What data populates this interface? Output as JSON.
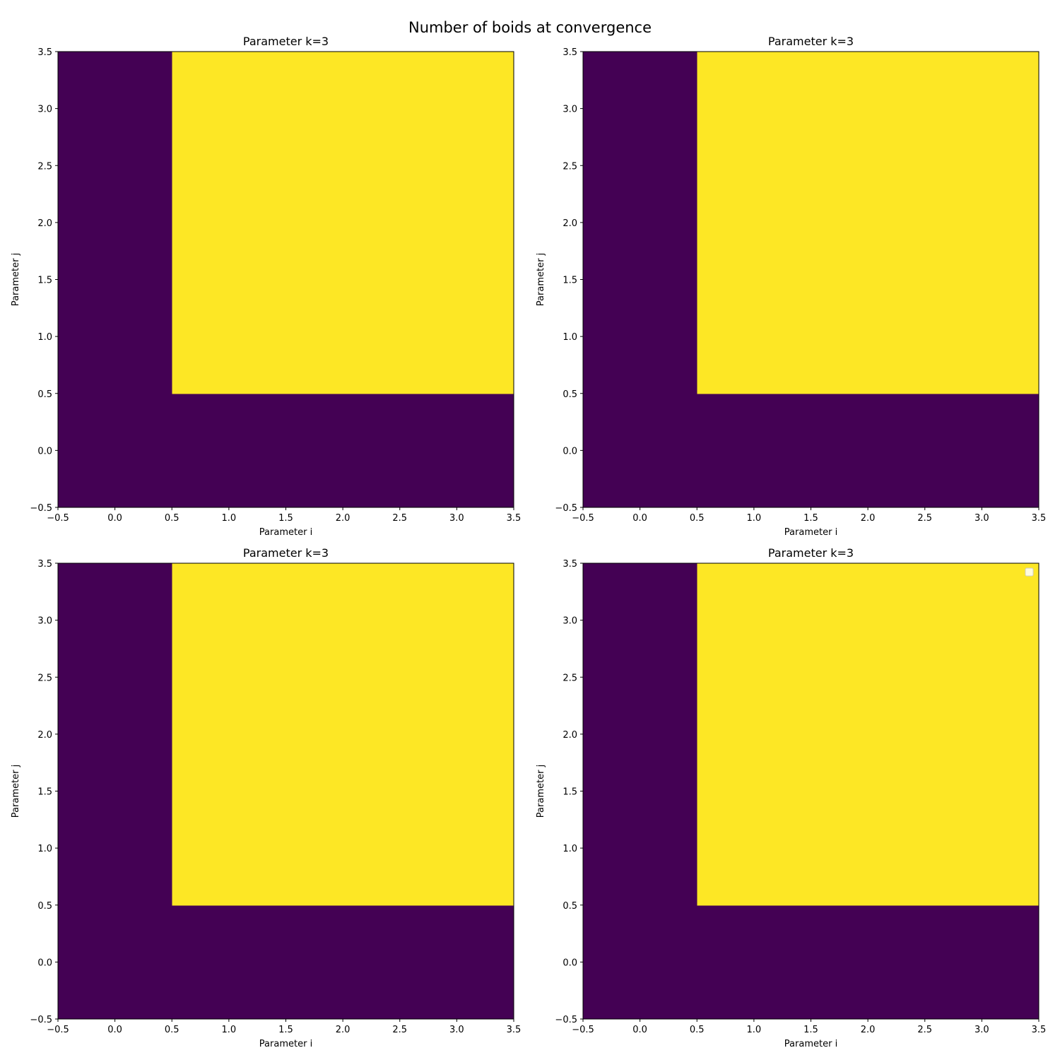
{
  "figure_title": "Number of boids at convergence",
  "chart_data": [
    {
      "type": "heatmap",
      "title": "Parameter k=3",
      "xlabel": "Parameter i",
      "ylabel": "Parameter j",
      "xlim": [
        -0.5,
        3.5
      ],
      "ylim": [
        -0.5,
        3.5
      ],
      "x": [
        0,
        1,
        2,
        3
      ],
      "y": [
        0,
        1,
        2,
        3
      ],
      "values": [
        [
          0,
          0,
          0,
          0
        ],
        [
          0,
          1,
          1,
          1
        ],
        [
          0,
          1,
          1,
          1
        ],
        [
          0,
          1,
          1,
          1
        ]
      ],
      "colormap": {
        "low": "#440154",
        "high": "#fde725"
      },
      "legend": false
    },
    {
      "type": "heatmap",
      "title": "Parameter k=3",
      "xlabel": "Parameter i",
      "ylabel": "Parameter j",
      "xlim": [
        -0.5,
        3.5
      ],
      "ylim": [
        -0.5,
        3.5
      ],
      "x": [
        0,
        1,
        2,
        3
      ],
      "y": [
        0,
        1,
        2,
        3
      ],
      "values": [
        [
          0,
          0,
          0,
          0
        ],
        [
          0,
          1,
          1,
          1
        ],
        [
          0,
          1,
          1,
          1
        ],
        [
          0,
          1,
          1,
          1
        ]
      ],
      "colormap": {
        "low": "#440154",
        "high": "#fde725"
      },
      "legend": false
    },
    {
      "type": "heatmap",
      "title": "Parameter k=3",
      "xlabel": "Parameter i",
      "ylabel": "Parameter j",
      "xlim": [
        -0.5,
        3.5
      ],
      "ylim": [
        -0.5,
        3.5
      ],
      "x": [
        0,
        1,
        2,
        3
      ],
      "y": [
        0,
        1,
        2,
        3
      ],
      "values": [
        [
          0,
          0,
          0,
          0
        ],
        [
          0,
          1,
          1,
          1
        ],
        [
          0,
          1,
          1,
          1
        ],
        [
          0,
          1,
          1,
          1
        ]
      ],
      "colormap": {
        "low": "#440154",
        "high": "#fde725"
      },
      "legend": false
    },
    {
      "type": "heatmap",
      "title": "Parameter k=3",
      "xlabel": "Parameter i",
      "ylabel": "Parameter j",
      "xlim": [
        -0.5,
        3.5
      ],
      "ylim": [
        -0.5,
        3.5
      ],
      "x": [
        0,
        1,
        2,
        3
      ],
      "y": [
        0,
        1,
        2,
        3
      ],
      "values": [
        [
          0,
          0,
          0,
          0
        ],
        [
          0,
          1,
          1,
          1
        ],
        [
          0,
          1,
          1,
          1
        ],
        [
          0,
          1,
          1,
          1
        ]
      ],
      "colormap": {
        "low": "#440154",
        "high": "#fde725"
      },
      "legend": true,
      "legend_position": "upper right"
    }
  ]
}
